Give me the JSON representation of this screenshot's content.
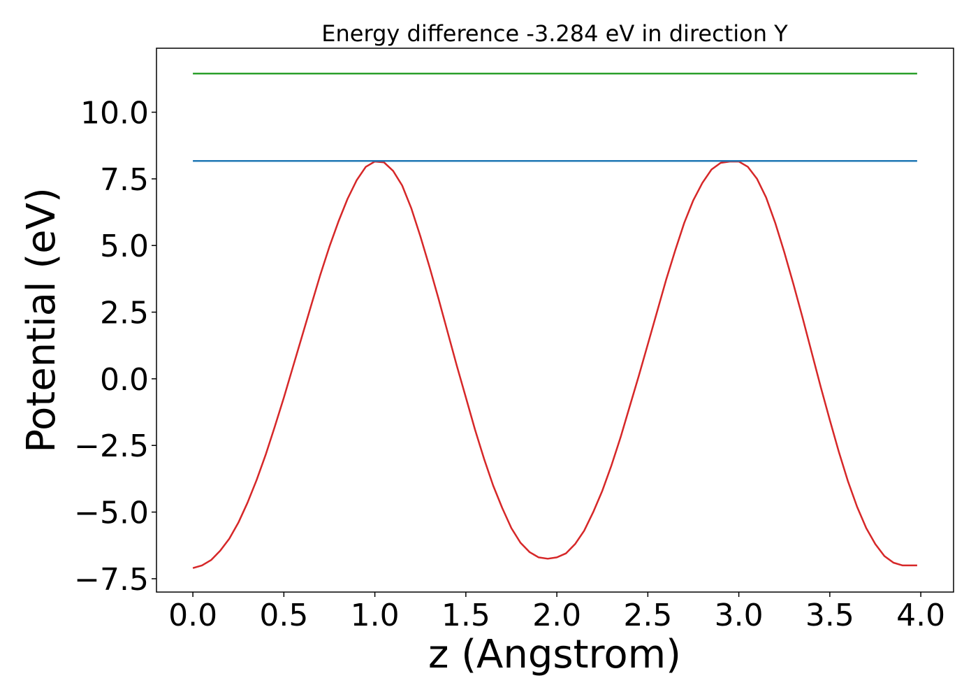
{
  "chart_data": {
    "type": "line",
    "title": "Energy difference -3.284 eV in direction Y",
    "xlabel": "z (Angstrom)",
    "ylabel": "Potential (eV)",
    "xlim": [
      -0.2,
      4.18
    ],
    "ylim": [
      -8.0,
      12.4
    ],
    "xticks": [
      0.0,
      0.5,
      1.0,
      1.5,
      2.0,
      2.5,
      3.0,
      3.5,
      4.0
    ],
    "xtick_labels": [
      "0.0",
      "0.5",
      "1.0",
      "1.5",
      "2.0",
      "2.5",
      "3.0",
      "3.5",
      "4.0"
    ],
    "yticks": [
      -7.5,
      -5.0,
      -2.5,
      0.0,
      2.5,
      5.0,
      7.5,
      10.0
    ],
    "ytick_labels": [
      "−7.5",
      "−5.0",
      "−2.5",
      "0.0",
      "2.5",
      "5.0",
      "7.5",
      "10.0"
    ],
    "grid": false,
    "series": [
      {
        "color": "#d62728",
        "x": [
          0.0,
          0.05,
          0.1,
          0.15,
          0.2,
          0.25,
          0.3,
          0.35,
          0.4,
          0.45,
          0.5,
          0.55,
          0.6,
          0.65,
          0.7,
          0.75,
          0.8,
          0.85,
          0.9,
          0.95,
          1.0,
          1.05,
          1.1,
          1.15,
          1.2,
          1.25,
          1.3,
          1.35,
          1.4,
          1.45,
          1.5,
          1.55,
          1.6,
          1.65,
          1.7,
          1.75,
          1.8,
          1.85,
          1.9,
          1.95,
          2.0,
          2.05,
          2.1,
          2.15,
          2.2,
          2.25,
          2.3,
          2.35,
          2.4,
          2.45,
          2.5,
          2.55,
          2.6,
          2.65,
          2.7,
          2.75,
          2.8,
          2.85,
          2.9,
          2.95,
          3.0,
          3.05,
          3.1,
          3.15,
          3.2,
          3.25,
          3.3,
          3.35,
          3.4,
          3.45,
          3.5,
          3.55,
          3.6,
          3.65,
          3.7,
          3.75,
          3.8,
          3.85,
          3.9,
          3.95,
          3.98
        ],
        "y": [
          -7.1,
          -7.0,
          -6.8,
          -6.45,
          -6.0,
          -5.4,
          -4.65,
          -3.8,
          -2.85,
          -1.8,
          -0.7,
          0.45,
          1.6,
          2.75,
          3.9,
          4.95,
          5.9,
          6.75,
          7.45,
          7.95,
          8.15,
          8.12,
          7.8,
          7.25,
          6.4,
          5.35,
          4.2,
          3.0,
          1.75,
          0.5,
          -0.7,
          -1.9,
          -3.0,
          -4.0,
          -4.85,
          -5.6,
          -6.15,
          -6.5,
          -6.7,
          -6.75,
          -6.7,
          -6.55,
          -6.2,
          -5.7,
          -5.0,
          -4.2,
          -3.25,
          -2.2,
          -1.05,
          0.1,
          1.3,
          2.5,
          3.7,
          4.8,
          5.85,
          6.7,
          7.35,
          7.85,
          8.1,
          8.15,
          8.15,
          7.95,
          7.5,
          6.8,
          5.85,
          4.75,
          3.55,
          2.3,
          1.0,
          -0.3,
          -1.55,
          -2.75,
          -3.85,
          -4.8,
          -5.6,
          -6.2,
          -6.65,
          -6.9,
          -7.0,
          -7.0,
          -7.0
        ]
      },
      {
        "color": "#1f77b4",
        "x": [
          0.0,
          3.98
        ],
        "y": [
          8.17,
          8.17
        ]
      },
      {
        "color": "#2ca02c",
        "x": [
          0.0,
          3.98
        ],
        "y": [
          11.45,
          11.45
        ]
      }
    ]
  }
}
